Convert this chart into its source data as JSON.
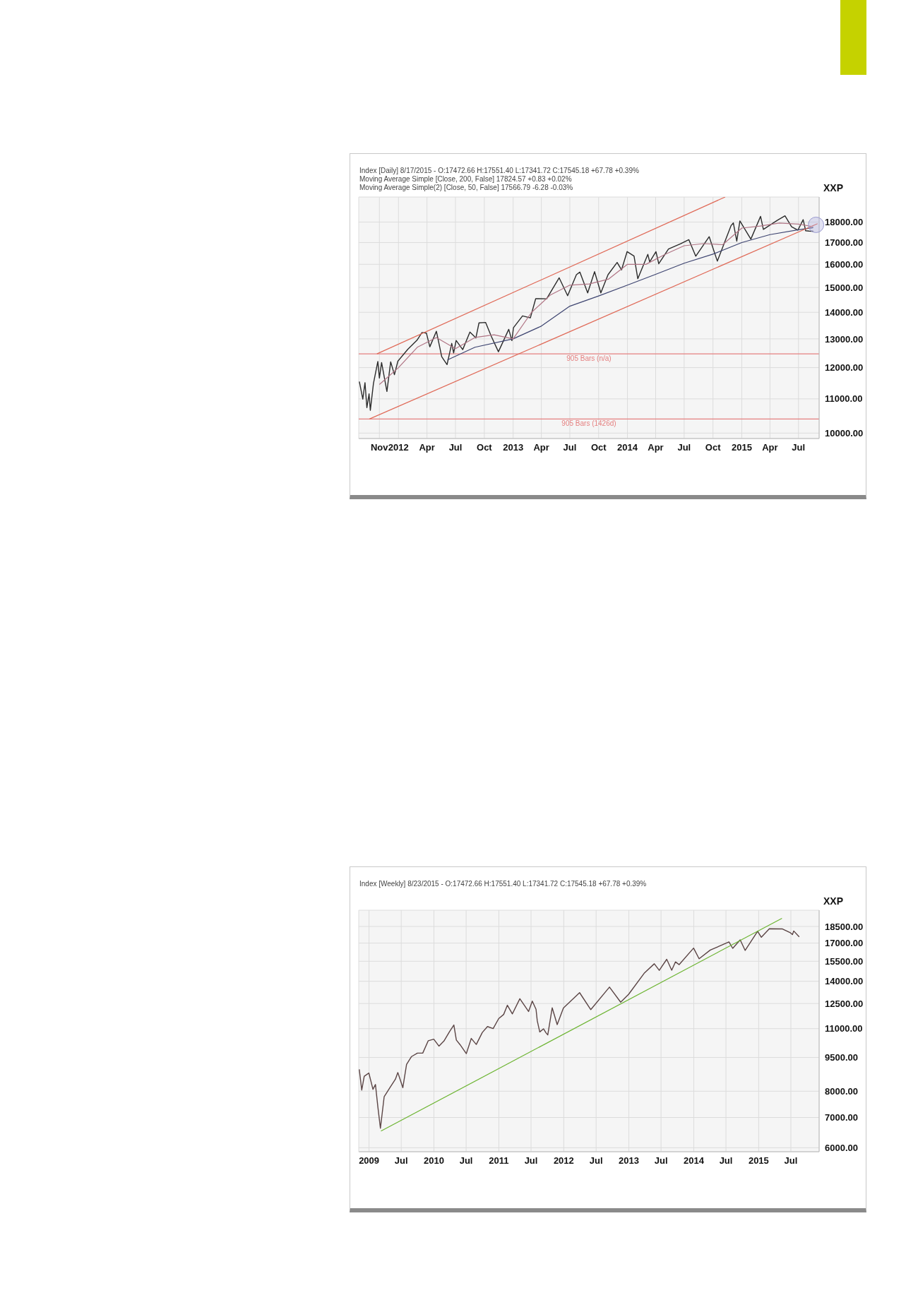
{
  "chart_data": [
    {
      "type": "line",
      "ylabel": "XXP",
      "log": true,
      "grid": true,
      "annotations": [
        "Index [Daily] 8/17/2015 - O:17472.66 H:17551.40 L:17341.72 C:17545.18 +67.78 +0.39%",
        "Moving Average Simple [Close, 200, False] 17824.57 +0.83 +0.02%",
        "Moving Average Simple(2) [Close, 50, False] 17566.79 -6.28 -0.03%"
      ],
      "xlim": [
        "2011-08-27",
        "2015-09-05"
      ],
      "xticks": [
        {
          "value": "2011-11-01",
          "label": "Nov"
        },
        {
          "value": "2012-01-01",
          "label": "2012"
        },
        {
          "value": "2012-04-01",
          "label": "Apr"
        },
        {
          "value": "2012-07-01",
          "label": "Jul"
        },
        {
          "value": "2012-10-01",
          "label": "Oct"
        },
        {
          "value": "2013-01-01",
          "label": "2013"
        },
        {
          "value": "2013-04-01",
          "label": "Apr"
        },
        {
          "value": "2013-07-01",
          "label": "Jul"
        },
        {
          "value": "2013-10-01",
          "label": "Oct"
        },
        {
          "value": "2014-01-01",
          "label": "2014"
        },
        {
          "value": "2014-04-01",
          "label": "Apr"
        },
        {
          "value": "2014-07-01",
          "label": "Jul"
        },
        {
          "value": "2014-10-01",
          "label": "Oct"
        },
        {
          "value": "2015-01-01",
          "label": "2015"
        },
        {
          "value": "2015-04-01",
          "label": "Apr"
        },
        {
          "value": "2015-07-01",
          "label": "Jul"
        }
      ],
      "ylim": [
        9850,
        19300
      ],
      "yticks": [
        {
          "value": 10000,
          "label": "10000.00"
        },
        {
          "value": 11000,
          "label": "11000.00"
        },
        {
          "value": 12000,
          "label": "12000.00"
        },
        {
          "value": 13000,
          "label": "13000.00"
        },
        {
          "value": 14000,
          "label": "14000.00"
        },
        {
          "value": 15000,
          "label": "15000.00"
        },
        {
          "value": 16000,
          "label": "16000.00"
        },
        {
          "value": 17000,
          "label": "17000.00"
        },
        {
          "value": 18000,
          "label": "18000.00"
        }
      ],
      "ref_lines": [
        {
          "axis": "y",
          "value": 12470,
          "label": "905 Bars (n/a)",
          "color": "#e58080"
        },
        {
          "axis": "y",
          "value": 10400,
          "label": "905 Bars (1426d)",
          "color": "#e58080"
        }
      ],
      "series": [
        {
          "type": "line",
          "color": "#2b2b2b",
          "x": [
            "2011-08-29",
            "2011-09-09",
            "2011-09-16",
            "2011-09-22",
            "2011-09-29",
            "2011-10-03",
            "2011-10-13",
            "2011-10-27",
            "2011-11-01",
            "2011-11-08",
            "2011-11-25",
            "2011-12-07",
            "2011-12-19",
            "2011-12-30",
            "2012-01-31",
            "2012-02-29",
            "2012-03-16",
            "2012-03-30",
            "2012-04-10",
            "2012-05-01",
            "2012-05-18",
            "2012-06-04",
            "2012-06-19",
            "2012-06-25",
            "2012-07-03",
            "2012-07-24",
            "2012-08-16",
            "2012-09-04",
            "2012-09-14",
            "2012-10-05",
            "2012-10-23",
            "2012-11-15",
            "2012-12-18",
            "2012-12-28",
            "2013-01-02",
            "2013-01-31",
            "2013-02-25",
            "2013-03-14",
            "2013-04-18",
            "2013-05-28",
            "2013-06-24",
            "2013-07-22",
            "2013-08-02",
            "2013-08-27",
            "2013-09-18",
            "2013-10-08",
            "2013-10-31",
            "2013-11-29",
            "2013-12-13",
            "2013-12-31",
            "2014-01-22",
            "2014-02-03",
            "2014-03-07",
            "2014-03-13",
            "2014-04-02",
            "2014-04-11",
            "2014-05-12",
            "2014-06-20",
            "2014-07-16",
            "2014-08-07",
            "2014-09-19",
            "2014-10-15",
            "2014-11-28",
            "2014-12-05",
            "2014-12-16",
            "2014-12-26",
            "2015-01-16",
            "2015-01-30",
            "2015-03-02",
            "2015-03-11",
            "2015-04-24",
            "2015-05-19",
            "2015-06-09",
            "2015-06-29",
            "2015-07-16",
            "2015-07-24",
            "2015-08-04",
            "2015-08-17"
          ],
          "values": [
            11540,
            10992,
            11509,
            10734,
            11154,
            10655,
            11479,
            12208,
            11658,
            12170,
            11231,
            12196,
            11767,
            12218,
            12633,
            12952,
            13233,
            13212,
            12716,
            13279,
            12369,
            12101,
            12837,
            12502,
            12943,
            12617,
            13250,
            13035,
            13593,
            13610,
            13102,
            12543,
            13351,
            12938,
            13412,
            13861,
            13784,
            14539,
            14537,
            15410,
            14660,
            15545,
            15658,
            14776,
            15676,
            14776,
            15546,
            16086,
            15755,
            16577,
            16373,
            15373,
            16452,
            16108,
            16573,
            16027,
            16695,
            16947,
            17138,
            16368,
            17280,
            16142,
            17828,
            17958,
            17068,
            18053,
            17512,
            17165,
            18288,
            17635,
            18080,
            18312,
            17765,
            17597,
            18120,
            17569,
            17551,
            17545
          ]
        },
        {
          "type": "line",
          "color": "#3d4470",
          "x": [
            "2012-06-05",
            "2012-09-01",
            "2013-01-01",
            "2013-04-01",
            "2013-07-01",
            "2013-10-01",
            "2014-01-01",
            "2014-04-01",
            "2014-07-01",
            "2014-10-01",
            "2015-01-01",
            "2015-04-01",
            "2015-07-01",
            "2015-08-17"
          ],
          "values": [
            12260,
            12700,
            13000,
            13470,
            14240,
            14650,
            15100,
            15560,
            16050,
            16460,
            17000,
            17380,
            17620,
            17720
          ]
        },
        {
          "type": "line",
          "color": "#b07484",
          "x": [
            "2011-11-01",
            "2012-01-01",
            "2012-03-01",
            "2012-05-01",
            "2012-07-01",
            "2012-09-01",
            "2012-11-01",
            "2013-01-01",
            "2013-03-01",
            "2013-05-01",
            "2013-07-01",
            "2013-09-01",
            "2013-11-01",
            "2014-01-01",
            "2014-03-01",
            "2014-05-01",
            "2014-07-01",
            "2014-09-01",
            "2014-11-01",
            "2015-01-01",
            "2015-03-01",
            "2015-05-01",
            "2015-07-01",
            "2015-08-17"
          ],
          "values": [
            11450,
            12000,
            12700,
            13050,
            12650,
            13050,
            13150,
            13000,
            14000,
            14700,
            15100,
            15150,
            15350,
            16000,
            16000,
            16450,
            16850,
            16950,
            16900,
            17700,
            17800,
            17950,
            17900,
            17770
          ]
        },
        {
          "type": "line",
          "color": "#e06a58",
          "x": [
            "2011-10-24",
            "2014-11-09"
          ],
          "values": [
            12470,
            19300
          ]
        },
        {
          "type": "line",
          "color": "#e06a58",
          "x": [
            "2011-09-30",
            "2015-08-31"
          ],
          "values": [
            10400,
            17920
          ]
        }
      ]
    },
    {
      "type": "line",
      "ylabel": "XXP",
      "log": true,
      "grid": true,
      "annotations": [
        "Index [Weekly] 8/23/2015 - O:17472.66 H:17551.40 L:17341.72 C:17545.18 +67.78 +0.39%"
      ],
      "xlim": [
        "2008-11-04",
        "2015-12-07"
      ],
      "xticks": [
        {
          "value": "2009-01-01",
          "label": "2009"
        },
        {
          "value": "2009-07-01",
          "label": "Jul"
        },
        {
          "value": "2010-01-01",
          "label": "2010"
        },
        {
          "value": "2010-07-01",
          "label": "Jul"
        },
        {
          "value": "2011-01-01",
          "label": "2011"
        },
        {
          "value": "2011-07-01",
          "label": "Jul"
        },
        {
          "value": "2012-01-01",
          "label": "2012"
        },
        {
          "value": "2012-07-01",
          "label": "Jul"
        },
        {
          "value": "2013-01-01",
          "label": "2013"
        },
        {
          "value": "2013-07-01",
          "label": "Jul"
        },
        {
          "value": "2014-01-01",
          "label": "2014"
        },
        {
          "value": "2014-07-01",
          "label": "Jul"
        },
        {
          "value": "2015-01-01",
          "label": "2015"
        },
        {
          "value": "2015-07-01",
          "label": "Jul"
        }
      ],
      "ylim": [
        5880,
        20100
      ],
      "yticks": [
        {
          "value": 6000,
          "label": "6000.00"
        },
        {
          "value": 7000,
          "label": "7000.00"
        },
        {
          "value": 8000,
          "label": "8000.00"
        },
        {
          "value": 9500,
          "label": "9500.00"
        },
        {
          "value": 11000,
          "label": "11000.00"
        },
        {
          "value": 12500,
          "label": "12500.00"
        },
        {
          "value": 14000,
          "label": "14000.00"
        },
        {
          "value": 15500,
          "label": "15500.00"
        },
        {
          "value": 17000,
          "label": "17000.00"
        },
        {
          "value": 18500,
          "label": "18500.00"
        }
      ],
      "series": [
        {
          "type": "line",
          "color": "#5a4444",
          "x": [
            "2008-11-07",
            "2008-11-21",
            "2008-12-05",
            "2008-12-31",
            "2009-01-23",
            "2009-02-06",
            "2009-02-20",
            "2009-03-06",
            "2009-03-27",
            "2009-04-30",
            "2009-05-29",
            "2009-06-12",
            "2009-07-10",
            "2009-07-31",
            "2009-08-28",
            "2009-09-30",
            "2009-10-30",
            "2009-11-30",
            "2009-12-31",
            "2010-01-29",
            "2010-02-26",
            "2010-03-31",
            "2010-04-23",
            "2010-05-07",
            "2010-05-28",
            "2010-07-02",
            "2010-07-30",
            "2010-08-27",
            "2010-09-30",
            "2010-10-29",
            "2010-11-30",
            "2010-12-31",
            "2011-01-28",
            "2011-02-18",
            "2011-03-18",
            "2011-04-29",
            "2011-06-17",
            "2011-07-08",
            "2011-07-29",
            "2011-08-05",
            "2011-08-19",
            "2011-09-09",
            "2011-09-23",
            "2011-10-03",
            "2011-10-28",
            "2011-11-25",
            "2011-12-30",
            "2012-03-30",
            "2012-06-01",
            "2012-09-14",
            "2012-11-16",
            "2012-12-31",
            "2013-03-28",
            "2013-05-24",
            "2013-06-21",
            "2013-08-02",
            "2013-08-30",
            "2013-09-20",
            "2013-10-11",
            "2013-12-31",
            "2014-01-31",
            "2014-04-04",
            "2014-07-18",
            "2014-08-08",
            "2014-09-19",
            "2014-10-17",
            "2014-12-26",
            "2015-01-16",
            "2015-03-02",
            "2015-05-15",
            "2015-06-26",
            "2015-07-10",
            "2015-07-17",
            "2015-08-17"
          ],
          "values": [
            8943,
            8046,
            8635,
            8776,
            8077,
            8280,
            7366,
            6627,
            7776,
            8168,
            8500,
            8799,
            8146,
            9172,
            9544,
            9712,
            9713,
            10345,
            10428,
            10067,
            10325,
            10857,
            11205,
            10380,
            10137,
            9686,
            10466,
            10150,
            10788,
            11118,
            11006,
            11578,
            11824,
            12391,
            11859,
            12811,
            12004,
            12657,
            12143,
            11445,
            10818,
            10992,
            10771,
            10655,
            12231,
            11231,
            12218,
            13212,
            12119,
            13593,
            12588,
            13104,
            14579,
            15303,
            14800,
            15658,
            14810,
            15452,
            15237,
            16577,
            15699,
            16413,
            17100,
            16553,
            17280,
            16380,
            18053,
            17512,
            18288,
            18272,
            17947,
            17760,
            18086,
            17545
          ]
        },
        {
          "type": "line",
          "color": "#6cb431",
          "x": [
            "2009-03-09",
            "2015-05-12"
          ],
          "values": [
            6530,
            19290
          ]
        }
      ]
    }
  ]
}
